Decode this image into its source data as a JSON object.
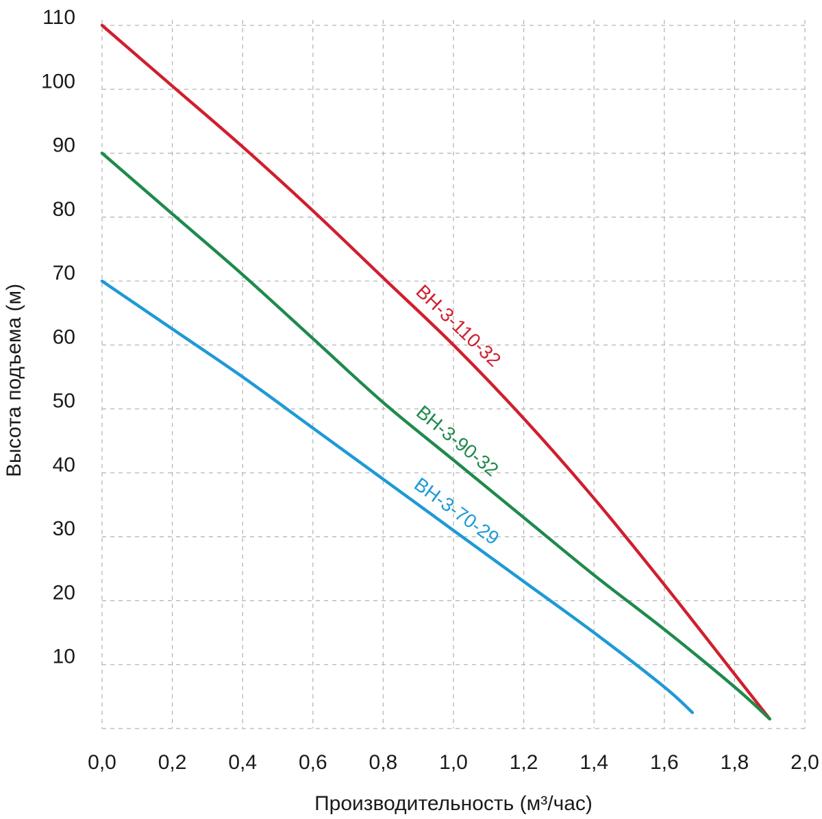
{
  "chart_data": {
    "type": "line",
    "xlabel": "Производительность (м³/час)",
    "ylabel": "Высота подъема (м)",
    "xlim": [
      0,
      2.0
    ],
    "ylim": [
      0,
      110
    ],
    "x_ticks": [
      "0,0",
      "0,2",
      "0,4",
      "0,6",
      "0,8",
      "1,0",
      "1,2",
      "1,4",
      "1,6",
      "1,8",
      "2,0"
    ],
    "y_ticks": [
      "10",
      "20",
      "30",
      "40",
      "50",
      "60",
      "70",
      "80",
      "90",
      "100",
      "110"
    ],
    "grid": true,
    "series": [
      {
        "name": "BH-3-110-32",
        "color": "#d01f2e",
        "x": [
          0.0,
          0.2,
          0.4,
          0.6,
          0.8,
          1.0,
          1.2,
          1.4,
          1.6,
          1.8,
          1.9
        ],
        "y": [
          110,
          100.5,
          91,
          81,
          70.5,
          60,
          48.5,
          36,
          22.5,
          8.5,
          1.5
        ]
      },
      {
        "name": "BH-3-90-32",
        "color": "#1f8a4c",
        "x": [
          0.0,
          0.2,
          0.4,
          0.6,
          0.8,
          1.0,
          1.2,
          1.4,
          1.6,
          1.8,
          1.9
        ],
        "y": [
          90,
          80.5,
          71,
          61,
          51,
          42,
          33,
          24,
          15.5,
          6.5,
          1.5
        ]
      },
      {
        "name": "BH-3-70-29",
        "color": "#1e9ad6",
        "x": [
          0.0,
          0.2,
          0.4,
          0.6,
          0.8,
          1.0,
          1.2,
          1.4,
          1.6,
          1.68
        ],
        "y": [
          70,
          62.5,
          55,
          47,
          39,
          31,
          23,
          15,
          6.5,
          2.5
        ]
      }
    ]
  }
}
